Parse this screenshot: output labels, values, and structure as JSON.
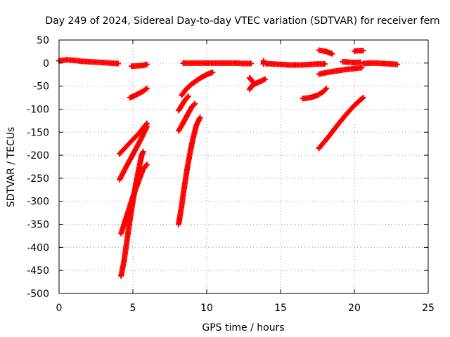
{
  "chart_data": {
    "type": "scatter",
    "title": "Day 249 of 2024, Sidereal Day-to-day VTEC variation (SDTVAR) for receiver fern",
    "xlabel": "GPS time / hours",
    "ylabel": "SDTVAR / TECUs",
    "xlim": [
      0,
      25
    ],
    "ylim": [
      -500,
      50
    ],
    "xticks": [
      "0",
      "5",
      "10",
      "15",
      "20",
      "25"
    ],
    "yticks": [
      "50",
      "0",
      "-50",
      "-100",
      "-150",
      "-200",
      "-250",
      "-300",
      "-350",
      "-400",
      "-450",
      "-500"
    ],
    "grid": true,
    "marker": "plus",
    "color": "#ff0000",
    "series": [
      {
        "points": [
          [
            0,
            5
          ],
          [
            0.5,
            7
          ],
          [
            1,
            6
          ],
          [
            1.5,
            4
          ],
          [
            2,
            3
          ],
          [
            2.5,
            2
          ],
          [
            3,
            1
          ],
          [
            3.5,
            0
          ],
          [
            4,
            -1
          ]
        ]
      },
      {
        "points": [
          [
            4.9,
            -7
          ],
          [
            5.3,
            -6
          ],
          [
            5.7,
            -5
          ],
          [
            5.95,
            -3
          ]
        ]
      },
      {
        "points": [
          [
            4.8,
            -75
          ],
          [
            5.1,
            -71
          ],
          [
            5.4,
            -66
          ],
          [
            5.7,
            -61
          ],
          [
            5.95,
            -55
          ]
        ]
      },
      {
        "points": [
          [
            4.1,
            -197
          ],
          [
            4.5,
            -183
          ],
          [
            5,
            -166
          ],
          [
            5.5,
            -149
          ],
          [
            5.95,
            -131
          ]
        ]
      },
      {
        "points": [
          [
            4.1,
            -253
          ],
          [
            4.5,
            -228
          ],
          [
            5,
            -198
          ],
          [
            5.5,
            -168
          ],
          [
            5.95,
            -138
          ]
        ]
      },
      {
        "points": [
          [
            4.2,
            -370
          ],
          [
            4.6,
            -330
          ],
          [
            5,
            -290
          ],
          [
            5.4,
            -255
          ],
          [
            5.7,
            -230
          ],
          [
            5.95,
            -220
          ]
        ]
      },
      {
        "points": [
          [
            4.2,
            -462
          ],
          [
            4.4,
            -430
          ],
          [
            4.6,
            -385
          ],
          [
            4.8,
            -340
          ],
          [
            5,
            -300
          ],
          [
            5.2,
            -263
          ],
          [
            5.4,
            -230
          ],
          [
            5.6,
            -200
          ],
          [
            5.7,
            -192
          ]
        ]
      },
      {
        "points": [
          [
            8.4,
            0
          ],
          [
            9,
            0
          ],
          [
            9.5,
            0
          ],
          [
            10,
            0
          ],
          [
            10.5,
            0
          ],
          [
            11,
            0
          ],
          [
            11.5,
            0
          ],
          [
            12,
            0
          ],
          [
            12.5,
            -1
          ],
          [
            13,
            -1
          ]
        ]
      },
      {
        "points": [
          [
            8.3,
            -70
          ],
          [
            8.6,
            -57
          ],
          [
            9,
            -45
          ],
          [
            9.5,
            -34
          ],
          [
            10,
            -25
          ],
          [
            10.4,
            -20
          ]
        ]
      },
      {
        "points": [
          [
            8.1,
            -103
          ],
          [
            8.3,
            -92
          ],
          [
            8.5,
            -82
          ],
          [
            8.75,
            -72
          ]
        ]
      },
      {
        "points": [
          [
            8.1,
            -147
          ],
          [
            8.4,
            -130
          ],
          [
            8.7,
            -112
          ],
          [
            9.0,
            -95
          ],
          [
            9.2,
            -88
          ]
        ]
      },
      {
        "points": [
          [
            8.1,
            -350
          ],
          [
            8.3,
            -310
          ],
          [
            8.5,
            -265
          ],
          [
            8.7,
            -225
          ],
          [
            8.9,
            -190
          ],
          [
            9.1,
            -160
          ],
          [
            9.3,
            -135
          ],
          [
            9.55,
            -118
          ]
        ]
      },
      {
        "points": [
          [
            12.9,
            -32
          ],
          [
            13.1,
            -40
          ]
        ]
      },
      {
        "points": [
          [
            12.9,
            -57
          ],
          [
            13.1,
            -48
          ],
          [
            13.4,
            -43
          ],
          [
            13.7,
            -39
          ],
          [
            13.95,
            -35
          ]
        ]
      },
      {
        "points": [
          [
            13.85,
            5
          ],
          [
            13.85,
            -2
          ]
        ]
      },
      {
        "points": [
          [
            14,
            -1
          ],
          [
            14.5,
            -2
          ],
          [
            15,
            -3
          ],
          [
            15.5,
            -4
          ],
          [
            16,
            -4
          ],
          [
            16.5,
            -4
          ],
          [
            17,
            -3
          ],
          [
            17.5,
            -2
          ],
          [
            18,
            -2
          ]
        ]
      },
      {
        "points": [
          [
            16.5,
            -77
          ],
          [
            17,
            -75
          ],
          [
            17.5,
            -70
          ],
          [
            17.9,
            -62
          ],
          [
            18.1,
            -55
          ]
        ]
      },
      {
        "points": [
          [
            17.6,
            28
          ],
          [
            18.1,
            25
          ],
          [
            18.5,
            20
          ]
        ]
      },
      {
        "points": [
          [
            17.6,
            -24
          ],
          [
            18.2,
            -20
          ],
          [
            18.8,
            -17
          ],
          [
            19.4,
            -14
          ],
          [
            20,
            -12
          ],
          [
            20.5,
            -10
          ]
        ]
      },
      {
        "points": [
          [
            19.2,
            3
          ],
          [
            19.6,
            2
          ],
          [
            20,
            1
          ],
          [
            20.4,
            2
          ]
        ]
      },
      {
        "points": [
          [
            20,
            26
          ],
          [
            20.3,
            27
          ],
          [
            20.6,
            27
          ]
        ]
      },
      {
        "points": [
          [
            17.6,
            -185
          ],
          [
            18.2,
            -162
          ],
          [
            18.8,
            -137
          ],
          [
            19.4,
            -113
          ],
          [
            20,
            -92
          ],
          [
            20.4,
            -80
          ],
          [
            20.6,
            -75
          ]
        ]
      },
      {
        "points": [
          [
            20.6,
            -1
          ],
          [
            21,
            0
          ],
          [
            21.5,
            0
          ],
          [
            22,
            -1
          ],
          [
            22.5,
            -2
          ],
          [
            22.9,
            -3
          ]
        ]
      }
    ]
  }
}
